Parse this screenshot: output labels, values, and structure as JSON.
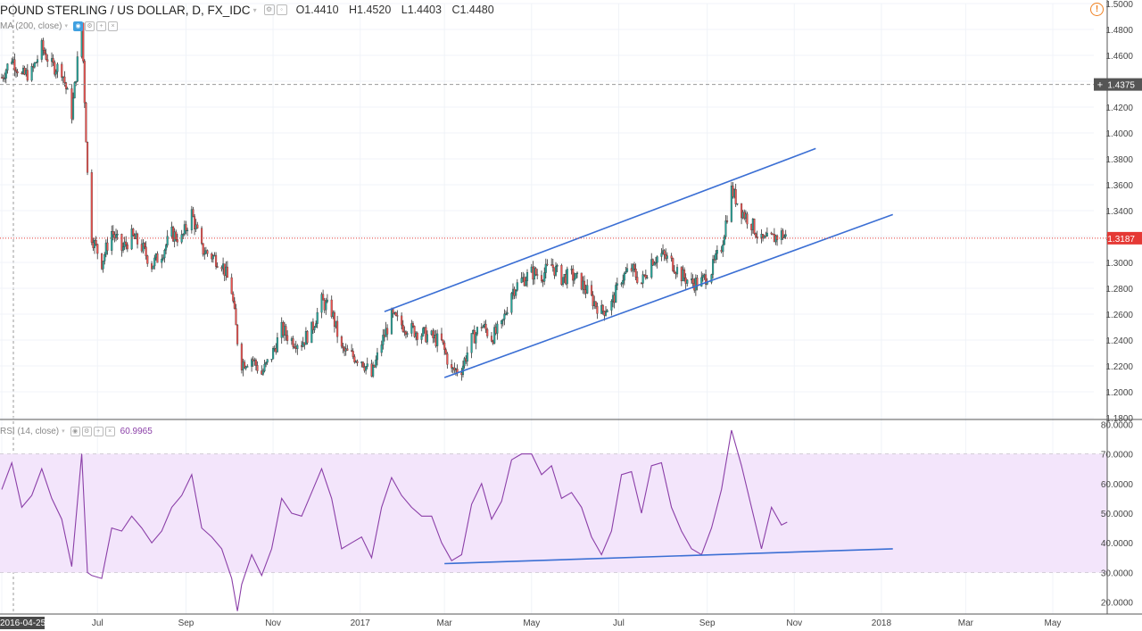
{
  "header": {
    "symbol": "POUND STERLING / US DOLLAR, D, FX_IDC",
    "open": "O1.4410",
    "high": "H1.4520",
    "low": "L1.4403",
    "close": "C1.4480",
    "ma_label": "MA (200, close)",
    "alert_icon": "alert-icon"
  },
  "rsi": {
    "label": "RSI (14, close)",
    "value": "60.9965"
  },
  "price_labels": {
    "crosshair": "1.4375",
    "last": "1.3187"
  },
  "colors": {
    "up": "#26a69a",
    "down": "#ef5350",
    "trendline": "#3b6fd4",
    "rsi_line": "#8b3fa8",
    "rsi_band": "#f3e5fb",
    "last_price": "#e53935",
    "crosshair_tag": "#555555"
  },
  "chart_data": [
    {
      "type": "candlestick",
      "title": "POUND STERLING / US DOLLAR, D, FX_IDC",
      "x_start": "2016-04-25",
      "x_end": "2018-05-31",
      "x_ticks": [
        {
          "date": "2016-04-25",
          "label": "2016-04-25"
        },
        {
          "date": "2016-07-01",
          "label": "Jul"
        },
        {
          "date": "2016-09-01",
          "label": "Sep"
        },
        {
          "date": "2016-11-01",
          "label": "Nov"
        },
        {
          "date": "2017-01-01",
          "label": "2017"
        },
        {
          "date": "2017-03-01",
          "label": "Mar"
        },
        {
          "date": "2017-05-01",
          "label": "May"
        },
        {
          "date": "2017-07-01",
          "label": "Jul"
        },
        {
          "date": "2017-09-01",
          "label": "Sep"
        },
        {
          "date": "2017-11-01",
          "label": "Nov"
        },
        {
          "date": "2018-01-01",
          "label": "2018"
        },
        {
          "date": "2018-03-01",
          "label": "Mar"
        },
        {
          "date": "2018-05-01",
          "label": "May"
        }
      ],
      "y_ticks": [
        "1.1800",
        "1.2000",
        "1.2200",
        "1.2400",
        "1.2600",
        "1.2800",
        "1.3000",
        "1.3200",
        "1.3400",
        "1.3600",
        "1.3800",
        "1.4000",
        "1.4200",
        "1.4400",
        "1.4600",
        "1.4800",
        "1.5000"
      ],
      "ylim": [
        1.18,
        1.5
      ],
      "last_price": 1.3187,
      "crosshair_price": 1.4375,
      "series": [
        {
          "name": "GBPUSD close (approx.)",
          "points": [
            [
              "2016-04-25",
              1.443
            ],
            [
              "2016-05-02",
              1.458
            ],
            [
              "2016-05-09",
              1.444
            ],
            [
              "2016-05-16",
              1.447
            ],
            [
              "2016-05-23",
              1.466
            ],
            [
              "2016-05-30",
              1.452
            ],
            [
              "2016-06-06",
              1.449
            ],
            [
              "2016-06-13",
              1.415
            ],
            [
              "2016-06-20",
              1.485
            ],
            [
              "2016-06-24",
              1.368
            ],
            [
              "2016-06-27",
              1.32
            ],
            [
              "2016-07-04",
              1.3
            ],
            [
              "2016-07-11",
              1.324
            ],
            [
              "2016-07-18",
              1.31
            ],
            [
              "2016-07-25",
              1.32
            ],
            [
              "2016-08-01",
              1.312
            ],
            [
              "2016-08-08",
              1.298
            ],
            [
              "2016-08-15",
              1.307
            ],
            [
              "2016-08-22",
              1.322
            ],
            [
              "2016-08-29",
              1.318
            ],
            [
              "2016-09-05",
              1.338
            ],
            [
              "2016-09-12",
              1.31
            ],
            [
              "2016-09-19",
              1.305
            ],
            [
              "2016-09-26",
              1.3
            ],
            [
              "2016-10-03",
              1.278
            ],
            [
              "2016-10-07",
              1.24
            ],
            [
              "2016-10-10",
              1.222
            ],
            [
              "2016-10-17",
              1.226
            ],
            [
              "2016-10-24",
              1.214
            ],
            [
              "2016-10-31",
              1.228
            ],
            [
              "2016-11-07",
              1.248
            ],
            [
              "2016-11-14",
              1.24
            ],
            [
              "2016-11-21",
              1.238
            ],
            [
              "2016-11-28",
              1.248
            ],
            [
              "2016-12-05",
              1.27
            ],
            [
              "2016-12-12",
              1.262
            ],
            [
              "2016-12-19",
              1.232
            ],
            [
              "2016-12-26",
              1.228
            ],
            [
              "2017-01-02",
              1.225
            ],
            [
              "2017-01-09",
              1.212
            ],
            [
              "2017-01-16",
              1.238
            ],
            [
              "2017-01-23",
              1.258
            ],
            [
              "2017-01-30",
              1.252
            ],
            [
              "2017-02-06",
              1.248
            ],
            [
              "2017-02-13",
              1.245
            ],
            [
              "2017-02-20",
              1.242
            ],
            [
              "2017-02-27",
              1.238
            ],
            [
              "2017-03-06",
              1.216
            ],
            [
              "2017-03-13",
              1.218
            ],
            [
              "2017-03-20",
              1.24
            ],
            [
              "2017-03-27",
              1.252
            ],
            [
              "2017-04-03",
              1.242
            ],
            [
              "2017-04-10",
              1.25
            ],
            [
              "2017-04-17",
              1.278
            ],
            [
              "2017-04-24",
              1.286
            ],
            [
              "2017-05-01",
              1.292
            ],
            [
              "2017-05-08",
              1.29
            ],
            [
              "2017-05-15",
              1.298
            ],
            [
              "2017-05-22",
              1.288
            ],
            [
              "2017-05-29",
              1.29
            ],
            [
              "2017-06-05",
              1.284
            ],
            [
              "2017-06-12",
              1.272
            ],
            [
              "2017-06-19",
              1.262
            ],
            [
              "2017-06-26",
              1.268
            ],
            [
              "2017-07-03",
              1.288
            ],
            [
              "2017-07-10",
              1.295
            ],
            [
              "2017-07-17",
              1.284
            ],
            [
              "2017-07-24",
              1.302
            ],
            [
              "2017-07-31",
              1.306
            ],
            [
              "2017-08-07",
              1.3
            ],
            [
              "2017-08-14",
              1.29
            ],
            [
              "2017-08-21",
              1.284
            ],
            [
              "2017-08-28",
              1.285
            ],
            [
              "2017-09-04",
              1.294
            ],
            [
              "2017-09-11",
              1.312
            ],
            [
              "2017-09-18",
              1.356
            ],
            [
              "2017-09-25",
              1.34
            ],
            [
              "2017-10-02",
              1.33
            ],
            [
              "2017-10-09",
              1.316
            ],
            [
              "2017-10-16",
              1.318
            ],
            [
              "2017-10-23",
              1.322
            ],
            [
              "2017-10-27",
              1.3187
            ]
          ]
        }
      ],
      "trendlines": [
        {
          "name": "channel upper",
          "from": [
            "2017-01-18",
            1.262
          ],
          "to": [
            "2017-11-16",
            1.388
          ]
        },
        {
          "name": "channel lower",
          "from": [
            "2017-03-01",
            1.211
          ],
          "to": [
            "2018-01-09",
            1.337
          ]
        }
      ]
    },
    {
      "type": "line",
      "title": "RSI (14, close)",
      "y_ticks": [
        "20.0000",
        "30.0000",
        "40.0000",
        "50.0000",
        "60.0000",
        "70.0000",
        "80.0000"
      ],
      "ylim": [
        16,
        81
      ],
      "band": [
        30,
        70
      ],
      "series": [
        {
          "name": "RSI (approx.)",
          "points": [
            [
              "2016-04-25",
              58
            ],
            [
              "2016-05-02",
              67
            ],
            [
              "2016-05-09",
              52
            ],
            [
              "2016-05-16",
              56
            ],
            [
              "2016-05-23",
              65
            ],
            [
              "2016-05-30",
              55
            ],
            [
              "2016-06-06",
              48
            ],
            [
              "2016-06-13",
              32
            ],
            [
              "2016-06-20",
              70
            ],
            [
              "2016-06-24",
              30
            ],
            [
              "2016-06-27",
              29
            ],
            [
              "2016-07-04",
              28
            ],
            [
              "2016-07-11",
              45
            ],
            [
              "2016-07-18",
              44
            ],
            [
              "2016-07-25",
              49
            ],
            [
              "2016-08-01",
              45
            ],
            [
              "2016-08-08",
              40
            ],
            [
              "2016-08-15",
              44
            ],
            [
              "2016-08-22",
              52
            ],
            [
              "2016-08-29",
              56
            ],
            [
              "2016-09-05",
              63
            ],
            [
              "2016-09-12",
              45
            ],
            [
              "2016-09-19",
              42
            ],
            [
              "2016-09-26",
              38
            ],
            [
              "2016-10-03",
              28
            ],
            [
              "2016-10-07",
              17
            ],
            [
              "2016-10-10",
              26
            ],
            [
              "2016-10-17",
              36
            ],
            [
              "2016-10-24",
              29
            ],
            [
              "2016-10-31",
              38
            ],
            [
              "2016-11-07",
              55
            ],
            [
              "2016-11-14",
              50
            ],
            [
              "2016-11-21",
              49
            ],
            [
              "2016-11-28",
              57
            ],
            [
              "2016-12-05",
              65
            ],
            [
              "2016-12-12",
              55
            ],
            [
              "2016-12-19",
              38
            ],
            [
              "2016-12-26",
              40
            ],
            [
              "2017-01-02",
              42
            ],
            [
              "2017-01-09",
              35
            ],
            [
              "2017-01-16",
              52
            ],
            [
              "2017-01-23",
              62
            ],
            [
              "2017-01-30",
              56
            ],
            [
              "2017-02-06",
              52
            ],
            [
              "2017-02-13",
              49
            ],
            [
              "2017-02-20",
              49
            ],
            [
              "2017-02-27",
              40
            ],
            [
              "2017-03-06",
              34
            ],
            [
              "2017-03-13",
              36
            ],
            [
              "2017-03-20",
              53
            ],
            [
              "2017-03-27",
              60
            ],
            [
              "2017-04-03",
              48
            ],
            [
              "2017-04-10",
              54
            ],
            [
              "2017-04-17",
              68
            ],
            [
              "2017-04-24",
              70
            ],
            [
              "2017-05-01",
              70
            ],
            [
              "2017-05-08",
              63
            ],
            [
              "2017-05-15",
              66
            ],
            [
              "2017-05-22",
              55
            ],
            [
              "2017-05-29",
              57
            ],
            [
              "2017-06-05",
              52
            ],
            [
              "2017-06-12",
              42
            ],
            [
              "2017-06-19",
              36
            ],
            [
              "2017-06-26",
              44
            ],
            [
              "2017-07-03",
              63
            ],
            [
              "2017-07-10",
              64
            ],
            [
              "2017-07-17",
              50
            ],
            [
              "2017-07-24",
              66
            ],
            [
              "2017-07-31",
              67
            ],
            [
              "2017-08-07",
              52
            ],
            [
              "2017-08-14",
              44
            ],
            [
              "2017-08-21",
              38
            ],
            [
              "2017-08-28",
              36
            ],
            [
              "2017-09-04",
              45
            ],
            [
              "2017-09-11",
              58
            ],
            [
              "2017-09-18",
              78
            ],
            [
              "2017-09-25",
              66
            ],
            [
              "2017-10-02",
              52
            ],
            [
              "2017-10-09",
              38
            ],
            [
              "2017-10-16",
              52
            ],
            [
              "2017-10-23",
              46
            ],
            [
              "2017-10-27",
              47
            ]
          ]
        }
      ],
      "trendlines": [
        {
          "name": "rsi support",
          "from": [
            "2017-03-01",
            33
          ],
          "to": [
            "2018-01-09",
            38
          ]
        }
      ]
    }
  ]
}
